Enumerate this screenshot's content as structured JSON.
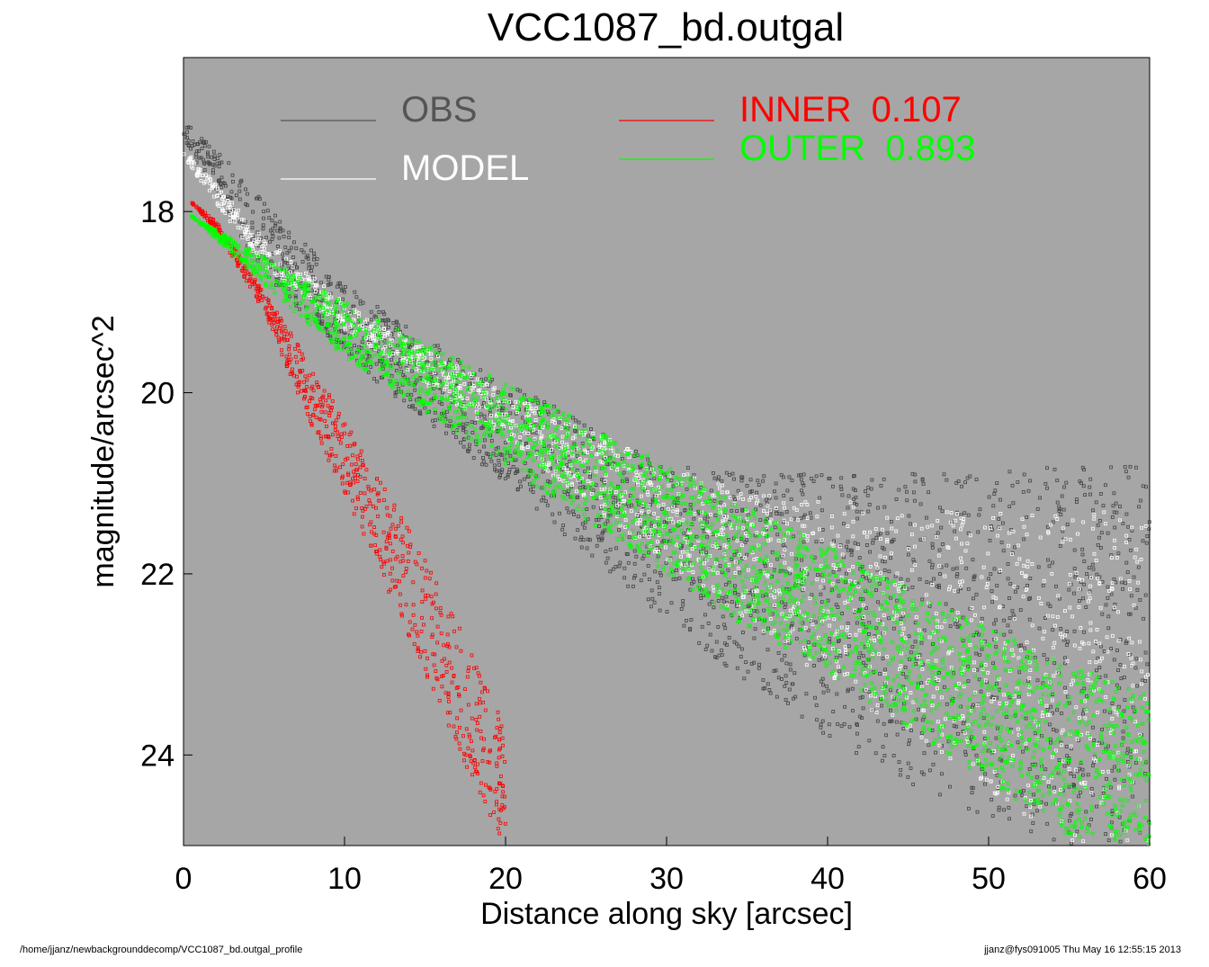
{
  "chart_data": {
    "type": "scatter",
    "title": "VCC1087_bd.outgal",
    "xlabel": "Distance along sky [arcsec]",
    "ylabel": "magnitude/arcsec^2",
    "xlim": [
      0,
      60
    ],
    "ylim": [
      25.0,
      16.3
    ],
    "y_inverted": true,
    "background_color": "#a6a6a6",
    "x_ticks": [
      "0",
      "10",
      "20",
      "30",
      "40",
      "50",
      "60"
    ],
    "y_ticks": [
      "18",
      "20",
      "22",
      "24"
    ],
    "x_tick_values": [
      0,
      10,
      20,
      30,
      40,
      50,
      60
    ],
    "y_tick_values": [
      18,
      20,
      22,
      24
    ],
    "legend": [
      {
        "label": "OBS",
        "value": "",
        "color": "#555555"
      },
      {
        "label": "MODEL",
        "value": "",
        "color": "#ffffff"
      },
      {
        "label": "INNER",
        "value": "0.107",
        "color": "#ff0000"
      },
      {
        "label": "OUTER",
        "value": "0.893",
        "color": "#00ff00"
      }
    ],
    "series": [
      {
        "name": "OBS",
        "color": "#444444",
        "x": [
          0,
          2,
          5,
          10,
          15,
          20,
          25,
          30,
          35,
          40,
          45,
          50,
          55,
          60
        ],
        "y_upper": [
          17.0,
          17.3,
          17.9,
          18.8,
          19.4,
          19.9,
          20.3,
          20.8,
          20.9,
          20.9,
          20.9,
          20.8,
          20.8,
          20.8
        ],
        "y_lower": [
          17.3,
          17.8,
          18.7,
          19.6,
          20.3,
          21.0,
          21.8,
          22.5,
          23.2,
          23.8,
          24.3,
          24.7,
          25.0,
          25.0
        ]
      },
      {
        "name": "MODEL",
        "color": "#ffffff",
        "x": [
          0,
          2,
          5,
          10,
          15,
          20,
          25,
          30,
          35,
          40,
          45,
          50,
          55,
          60
        ],
        "y_upper": [
          17.3,
          17.7,
          18.3,
          19.0,
          19.5,
          20.0,
          20.4,
          20.8,
          21.1,
          21.2,
          21.2,
          21.3,
          21.3,
          21.3
        ],
        "y_lower": [
          17.4,
          17.9,
          18.6,
          19.3,
          19.9,
          20.5,
          21.2,
          21.9,
          22.5,
          23.2,
          23.8,
          24.4,
          25.0,
          25.0
        ]
      },
      {
        "name": "INNER",
        "color": "#ff0000",
        "x": [
          0.5,
          2,
          5,
          8,
          10,
          12,
          14,
          16,
          18,
          20
        ],
        "y_upper": [
          17.9,
          18.1,
          18.9,
          19.7,
          20.3,
          20.9,
          21.5,
          22.2,
          22.9,
          23.7
        ],
        "y_lower": [
          17.9,
          18.2,
          19.1,
          20.4,
          21.1,
          21.9,
          22.7,
          23.5,
          24.3,
          25.0
        ]
      },
      {
        "name": "OUTER",
        "color": "#00ff00",
        "x": [
          0.5,
          2,
          5,
          10,
          15,
          20,
          25,
          30,
          35,
          40,
          45,
          50,
          55,
          60
        ],
        "y_upper": [
          18.05,
          18.2,
          18.5,
          19.0,
          19.45,
          19.9,
          20.35,
          20.8,
          21.25,
          21.7,
          22.15,
          22.6,
          23.0,
          23.35
        ],
        "y_lower": [
          18.05,
          18.3,
          18.8,
          19.6,
          20.2,
          20.8,
          21.4,
          22.0,
          22.6,
          23.1,
          23.7,
          24.3,
          24.9,
          25.0
        ]
      }
    ]
  },
  "footer": {
    "path": "/home/jjanz/newbackgrounddecomp/VCC1087_bd.outgal_profile",
    "stamp": "jjanz@fys091005  Thu May 16 12:55:15 2013"
  }
}
